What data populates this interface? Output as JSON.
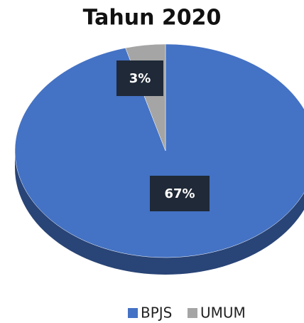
{
  "chart_data": {
    "type": "pie",
    "title": "Tahun 2020",
    "categories": [
      "BPJS",
      "UMUM"
    ],
    "values": [
      67,
      3
    ],
    "value_labels": [
      "67%",
      "3%"
    ],
    "colors": [
      "#4472c4",
      "#a5a5a5"
    ],
    "legend": "bottom"
  }
}
